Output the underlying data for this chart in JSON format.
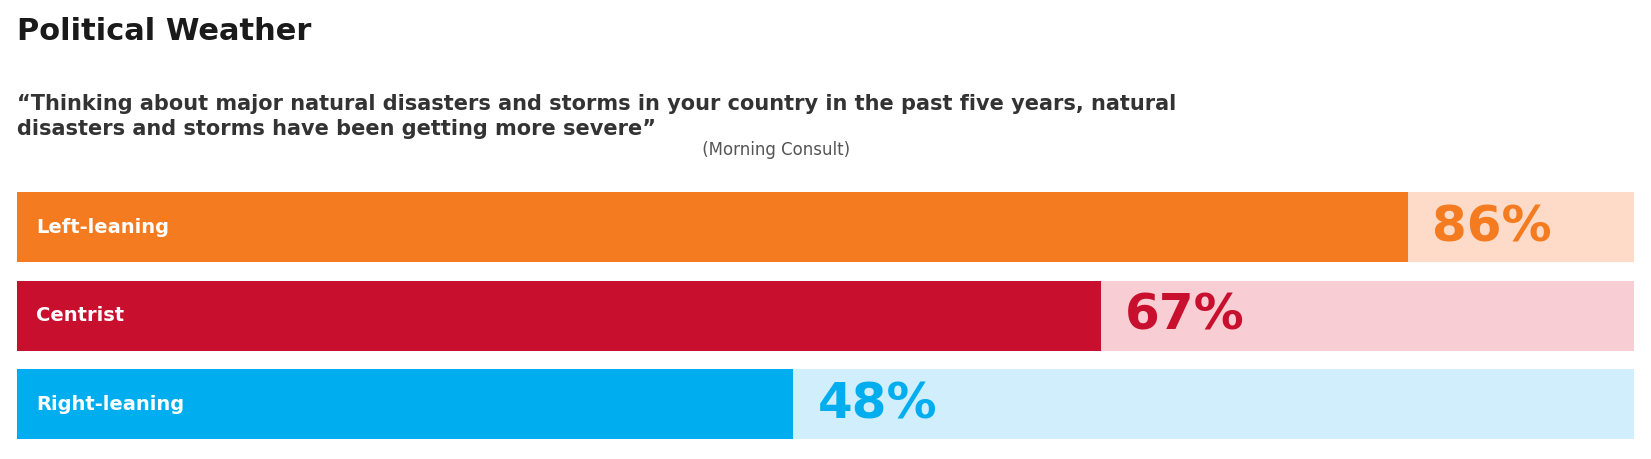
{
  "title": "Political Weather",
  "subtitle_bold": "“Thinking about major natural disasters and storms in your country in the past five years, natural\ndisasters and storms have been getting more severe”",
  "subtitle_source": " (Morning Consult)",
  "categories": [
    "Left-leaning",
    "Centrist",
    "Right-leaning"
  ],
  "values": [
    86,
    67,
    48
  ],
  "bar_colors": [
    "#F47B20",
    "#C8102E",
    "#00AEEF"
  ],
  "bg_colors": [
    "#FDDBC8",
    "#F9CDD4",
    "#D0EEFC"
  ],
  "pct_colors": [
    "#F47B20",
    "#C8102E",
    "#00AEEF"
  ],
  "label_color": "#FFFFFF",
  "title_color": "#1A1A1A",
  "subtitle_color": "#333333",
  "source_color": "#555555",
  "max_val": 100,
  "title_fontsize": 22,
  "subtitle_fontsize": 15,
  "source_fontsize": 12,
  "pct_fontsize": 36,
  "cat_fontsize": 14,
  "background_color": "#FFFFFF"
}
